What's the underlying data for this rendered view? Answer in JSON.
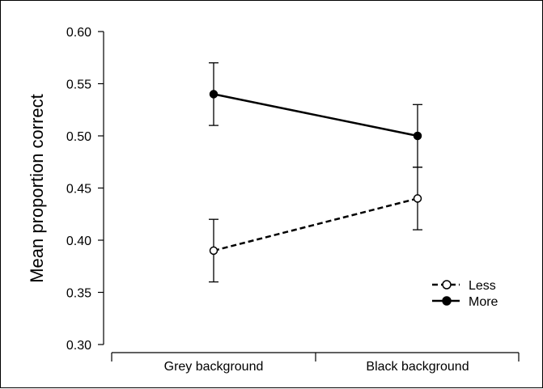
{
  "chart_data": {
    "type": "line",
    "categories": [
      "Grey background",
      "Black background"
    ],
    "ylabel": "Mean proportion correct",
    "xlabel": "",
    "ylim": [
      0.3,
      0.6
    ],
    "yticks": [
      "0.30",
      "0.35",
      "0.40",
      "0.45",
      "0.50",
      "0.55",
      "0.60"
    ],
    "grid": false,
    "legend_position": "bottom-right",
    "series": [
      {
        "name": "Less",
        "values": [
          0.39,
          0.44
        ],
        "error": [
          [
            0.36,
            0.42
          ],
          [
            0.41,
            0.47
          ]
        ],
        "line_style": "dashed",
        "marker": "open-circle",
        "color": "#000000"
      },
      {
        "name": "More",
        "values": [
          0.54,
          0.5
        ],
        "error": [
          [
            0.51,
            0.57
          ],
          [
            0.47,
            0.53
          ]
        ],
        "line_style": "solid",
        "marker": "filled-circle",
        "color": "#000000"
      }
    ]
  }
}
